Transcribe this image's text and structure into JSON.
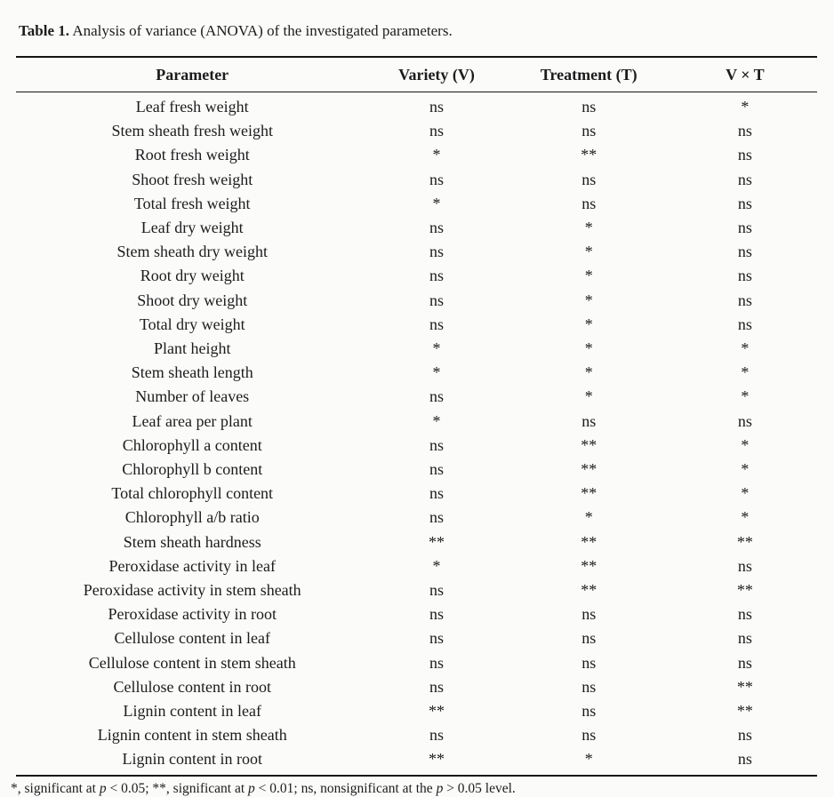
{
  "caption": {
    "label": "Table 1.",
    "text": " Analysis of variance (ANOVA) of the investigated parameters."
  },
  "table": {
    "columns": [
      "Parameter",
      "Variety (V)",
      "Treatment (T)",
      "V × T"
    ],
    "rows": [
      {
        "parameter": "Leaf fresh weight",
        "variety": "ns",
        "treatment": "ns",
        "vxt": "*"
      },
      {
        "parameter": "Stem sheath fresh weight",
        "variety": "ns",
        "treatment": "ns",
        "vxt": "ns"
      },
      {
        "parameter": "Root fresh weight",
        "variety": "*",
        "treatment": "**",
        "vxt": "ns"
      },
      {
        "parameter": "Shoot fresh weight",
        "variety": "ns",
        "treatment": "ns",
        "vxt": "ns"
      },
      {
        "parameter": "Total fresh weight",
        "variety": "*",
        "treatment": "ns",
        "vxt": "ns"
      },
      {
        "parameter": "Leaf dry weight",
        "variety": "ns",
        "treatment": "*",
        "vxt": "ns"
      },
      {
        "parameter": "Stem sheath dry weight",
        "variety": "ns",
        "treatment": "*",
        "vxt": "ns"
      },
      {
        "parameter": "Root dry weight",
        "variety": "ns",
        "treatment": "*",
        "vxt": "ns"
      },
      {
        "parameter": "Shoot dry weight",
        "variety": "ns",
        "treatment": "*",
        "vxt": "ns"
      },
      {
        "parameter": "Total dry weight",
        "variety": "ns",
        "treatment": "*",
        "vxt": "ns"
      },
      {
        "parameter": "Plant height",
        "variety": "*",
        "treatment": "*",
        "vxt": "*"
      },
      {
        "parameter": "Stem sheath length",
        "variety": "*",
        "treatment": "*",
        "vxt": "*"
      },
      {
        "parameter": "Number of leaves",
        "variety": "ns",
        "treatment": "*",
        "vxt": "*"
      },
      {
        "parameter": "Leaf area per plant",
        "variety": "*",
        "treatment": "ns",
        "vxt": "ns"
      },
      {
        "parameter": "Chlorophyll a content",
        "variety": "ns",
        "treatment": "**",
        "vxt": "*"
      },
      {
        "parameter": "Chlorophyll b content",
        "variety": "ns",
        "treatment": "**",
        "vxt": "*"
      },
      {
        "parameter": "Total chlorophyll content",
        "variety": "ns",
        "treatment": "**",
        "vxt": "*"
      },
      {
        "parameter": "Chlorophyll a/b ratio",
        "variety": "ns",
        "treatment": "*",
        "vxt": "*"
      },
      {
        "parameter": "Stem sheath hardness",
        "variety": "**",
        "treatment": "**",
        "vxt": "**"
      },
      {
        "parameter": "Peroxidase activity in leaf",
        "variety": "*",
        "treatment": "**",
        "vxt": "ns"
      },
      {
        "parameter": "Peroxidase activity in stem sheath",
        "variety": "ns",
        "treatment": "**",
        "vxt": "**"
      },
      {
        "parameter": "Peroxidase activity in root",
        "variety": "ns",
        "treatment": "ns",
        "vxt": "ns"
      },
      {
        "parameter": "Cellulose content in leaf",
        "variety": "ns",
        "treatment": "ns",
        "vxt": "ns"
      },
      {
        "parameter": "Cellulose content in stem sheath",
        "variety": "ns",
        "treatment": "ns",
        "vxt": "ns"
      },
      {
        "parameter": "Cellulose content in root",
        "variety": "ns",
        "treatment": "ns",
        "vxt": "**"
      },
      {
        "parameter": "Lignin content in leaf",
        "variety": "**",
        "treatment": "ns",
        "vxt": "**"
      },
      {
        "parameter": "Lignin content in stem sheath",
        "variety": "ns",
        "treatment": "ns",
        "vxt": "ns"
      },
      {
        "parameter": "Lignin content in root",
        "variety": "**",
        "treatment": "*",
        "vxt": "ns"
      }
    ]
  },
  "footnote": {
    "parts": [
      {
        "text": "*, significant at ",
        "italic": false
      },
      {
        "text": "p",
        "italic": true
      },
      {
        "text": " < 0.05; **, significant at ",
        "italic": false
      },
      {
        "text": "p",
        "italic": true
      },
      {
        "text": " < 0.01; ns, nonsignificant at the ",
        "italic": false
      },
      {
        "text": "p",
        "italic": true
      },
      {
        "text": " > 0.05 level.",
        "italic": false
      }
    ]
  },
  "colors": {
    "text": "#1c1c1c",
    "rule": "#151515",
    "background": "#fbfbfa"
  }
}
